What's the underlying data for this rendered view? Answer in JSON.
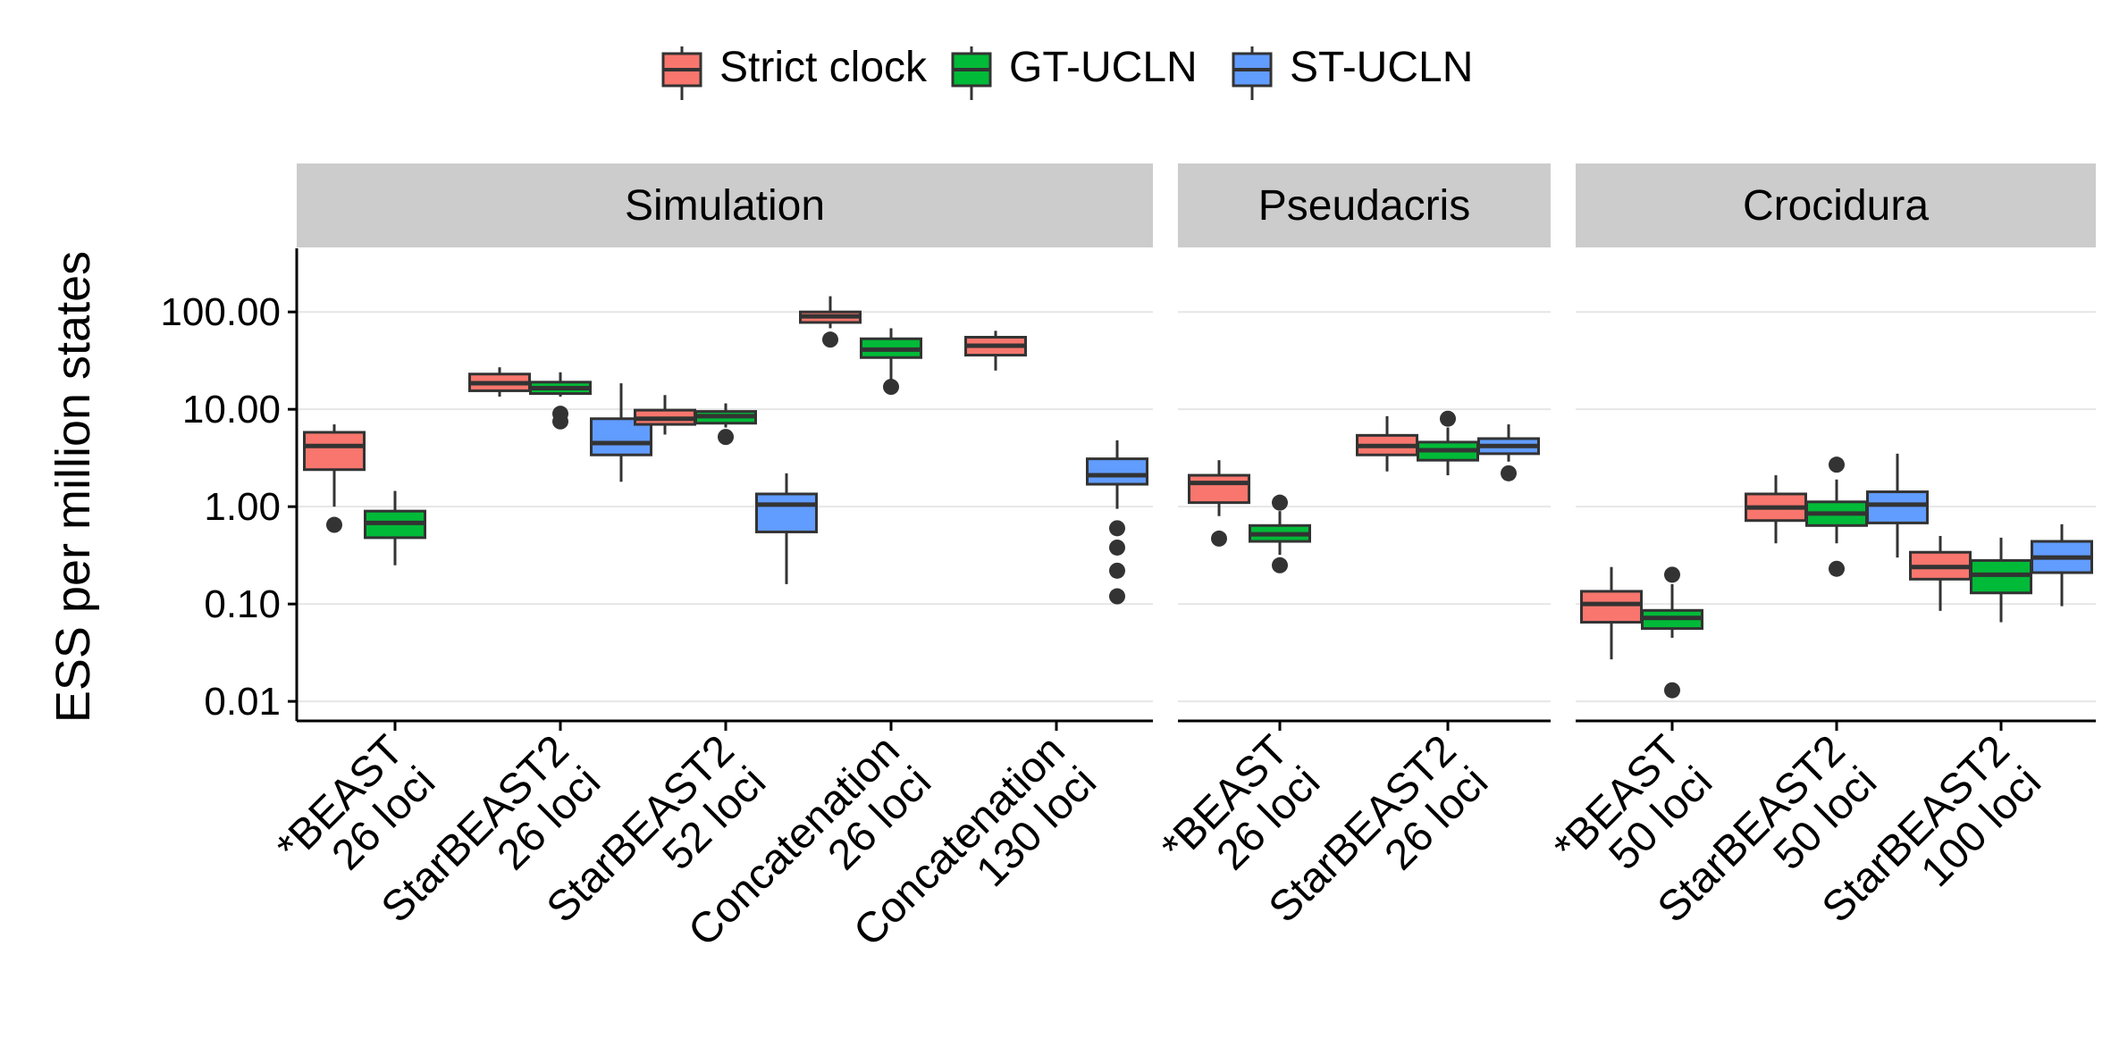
{
  "chart_data": {
    "type": "boxplot",
    "y_label": "ESS per million states",
    "y_scale": "log10",
    "y_range": [
      0.0063,
      450
    ],
    "y_ticks": [
      0.01,
      0.1,
      1,
      10,
      100
    ],
    "y_tick_labels": [
      "0.01",
      "0.10",
      "1.00",
      "10.00",
      "100.00"
    ],
    "grid": true,
    "legend": {
      "placement": "top",
      "entries": [
        {
          "name": "Strict clock",
          "color": "#F8766D"
        },
        {
          "name": "GT-UCLN",
          "color": "#00BA38"
        },
        {
          "name": "ST-UCLN",
          "color": "#619CFF"
        }
      ]
    },
    "panels": [
      {
        "title": "Simulation",
        "categories": [
          {
            "line1": "*BEAST",
            "line2": "26 loci",
            "boxes": [
              {
                "series": "Strict clock",
                "whisker_low": 1.0,
                "q1": 2.4,
                "median": 4.2,
                "q3": 5.8,
                "whisker_high": 7.0,
                "outliers": [
                  0.65
                ]
              },
              {
                "series": "GT-UCLN",
                "whisker_low": 0.25,
                "q1": 0.48,
                "median": 0.68,
                "q3": 0.9,
                "whisker_high": 1.45,
                "outliers": []
              }
            ]
          },
          {
            "line1": "StarBEAST2",
            "line2": "26 loci",
            "boxes": [
              {
                "series": "Strict clock",
                "whisker_low": 13.5,
                "q1": 15.5,
                "median": 18.5,
                "q3": 23.0,
                "whisker_high": 27.0,
                "outliers": []
              },
              {
                "series": "GT-UCLN",
                "whisker_low": 13.5,
                "q1": 14.5,
                "median": 16.5,
                "q3": 19.0,
                "whisker_high": 24.0,
                "outliers": [
                  9.0,
                  7.5
                ]
              },
              {
                "series": "ST-UCLN",
                "whisker_low": 1.8,
                "q1": 3.4,
                "median": 4.5,
                "q3": 8.0,
                "whisker_high": 18.5,
                "outliers": []
              }
            ]
          },
          {
            "line1": "StarBEAST2",
            "line2": "52 loci",
            "boxes": [
              {
                "series": "Strict clock",
                "whisker_low": 5.5,
                "q1": 7.0,
                "median": 8.0,
                "q3": 9.8,
                "whisker_high": 14.0,
                "outliers": []
              },
              {
                "series": "GT-UCLN",
                "whisker_low": 6.5,
                "q1": 7.2,
                "median": 8.5,
                "q3": 9.5,
                "whisker_high": 11.5,
                "outliers": [
                  5.2
                ]
              },
              {
                "series": "ST-UCLN",
                "whisker_low": 0.16,
                "q1": 0.55,
                "median": 1.05,
                "q3": 1.35,
                "whisker_high": 2.2,
                "outliers": []
              }
            ]
          },
          {
            "line1": "Concatenation",
            "line2": "26 loci",
            "boxes": [
              {
                "series": "Strict clock",
                "whisker_low": 68,
                "q1": 78,
                "median": 90,
                "q3": 100,
                "whisker_high": 145,
                "outliers": [
                  52
                ]
              },
              {
                "series": "GT-UCLN",
                "whisker_low": 20,
                "q1": 34,
                "median": 41,
                "q3": 53,
                "whisker_high": 68,
                "outliers": [
                  17
                ]
              }
            ]
          },
          {
            "line1": "Concatenation",
            "line2": "130 loci",
            "boxes": [
              {
                "series": "Strict clock",
                "whisker_low": 25,
                "q1": 36,
                "median": 45,
                "q3": 55,
                "whisker_high": 64,
                "outliers": []
              },
              {
                "series": "ST-UCLN",
                "whisker_low": 0.95,
                "q1": 1.7,
                "median": 2.1,
                "q3": 3.1,
                "whisker_high": 4.8,
                "outliers": [
                  0.6,
                  0.38,
                  0.22,
                  0.12
                ]
              }
            ]
          }
        ]
      },
      {
        "title": "Pseudacris",
        "categories": [
          {
            "line1": "*BEAST",
            "line2": "26 loci",
            "boxes": [
              {
                "series": "Strict clock",
                "whisker_low": 0.8,
                "q1": 1.1,
                "median": 1.75,
                "q3": 2.1,
                "whisker_high": 3.0,
                "outliers": [
                  0.47
                ]
              },
              {
                "series": "GT-UCLN",
                "whisker_low": 0.32,
                "q1": 0.44,
                "median": 0.52,
                "q3": 0.64,
                "whisker_high": 0.9,
                "outliers": [
                  1.1,
                  0.25
                ]
              }
            ]
          },
          {
            "line1": "StarBEAST2",
            "line2": "26 loci",
            "boxes": [
              {
                "series": "Strict clock",
                "whisker_low": 2.3,
                "q1": 3.4,
                "median": 4.2,
                "q3": 5.4,
                "whisker_high": 8.5,
                "outliers": []
              },
              {
                "series": "GT-UCLN",
                "whisker_low": 2.1,
                "q1": 3.0,
                "median": 3.8,
                "q3": 4.6,
                "whisker_high": 6.5,
                "outliers": [
                  8.0
                ]
              },
              {
                "series": "ST-UCLN",
                "whisker_low": 2.9,
                "q1": 3.5,
                "median": 4.2,
                "q3": 5.0,
                "whisker_high": 7.0,
                "outliers": [
                  2.2
                ]
              }
            ]
          }
        ]
      },
      {
        "title": "Crocidura",
        "categories": [
          {
            "line1": "*BEAST",
            "line2": "50 loci",
            "boxes": [
              {
                "series": "Strict clock",
                "whisker_low": 0.027,
                "q1": 0.065,
                "median": 0.1,
                "q3": 0.135,
                "whisker_high": 0.24,
                "outliers": []
              },
              {
                "series": "GT-UCLN",
                "whisker_low": 0.045,
                "q1": 0.056,
                "median": 0.072,
                "q3": 0.086,
                "whisker_high": 0.16,
                "outliers": [
                  0.2,
                  0.013
                ]
              }
            ]
          },
          {
            "line1": "StarBEAST2",
            "line2": "50 loci",
            "boxes": [
              {
                "series": "Strict clock",
                "whisker_low": 0.42,
                "q1": 0.72,
                "median": 0.98,
                "q3": 1.35,
                "whisker_high": 2.1,
                "outliers": []
              },
              {
                "series": "GT-UCLN",
                "whisker_low": 0.42,
                "q1": 0.64,
                "median": 0.85,
                "q3": 1.12,
                "whisker_high": 1.9,
                "outliers": [
                  2.7,
                  0.23
                ]
              },
              {
                "series": "ST-UCLN",
                "whisker_low": 0.3,
                "q1": 0.68,
                "median": 1.05,
                "q3": 1.42,
                "whisker_high": 3.5,
                "outliers": []
              }
            ]
          },
          {
            "line1": "StarBEAST2",
            "line2": "100 loci",
            "boxes": [
              {
                "series": "Strict clock",
                "whisker_low": 0.085,
                "q1": 0.18,
                "median": 0.24,
                "q3": 0.34,
                "whisker_high": 0.5,
                "outliers": []
              },
              {
                "series": "GT-UCLN",
                "whisker_low": 0.065,
                "q1": 0.13,
                "median": 0.2,
                "q3": 0.28,
                "whisker_high": 0.48,
                "outliers": []
              },
              {
                "series": "ST-UCLN",
                "whisker_low": 0.095,
                "q1": 0.21,
                "median": 0.3,
                "q3": 0.44,
                "whisker_high": 0.66,
                "outliers": []
              }
            ]
          }
        ]
      }
    ]
  }
}
